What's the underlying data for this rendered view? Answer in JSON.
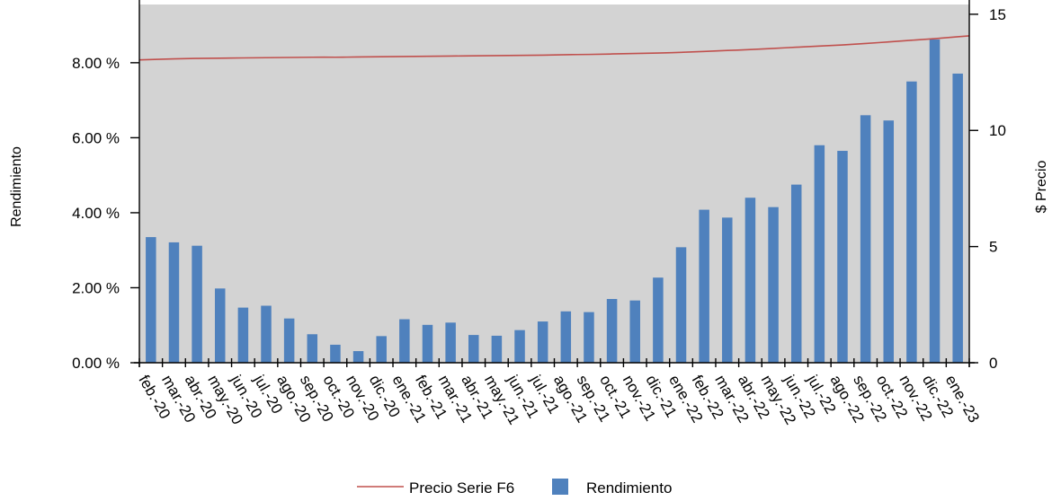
{
  "chart_data": {
    "type": "bar",
    "categories": [
      "feb.-20",
      "mar.-20",
      "abr.-20",
      "may.-20",
      "jun.-20",
      "jul.-20",
      "ago.-20",
      "sep.-20",
      "oct.-20",
      "nov.-20",
      "dic.-20",
      "ene.-21",
      "feb.-21",
      "mar.-21",
      "abr.-21",
      "may.-21",
      "jun.-21",
      "jul.-21",
      "ago.-21",
      "sep.-21",
      "oct.-21",
      "nov.-21",
      "dic.-21",
      "ene.-22",
      "feb.-22",
      "mar.-22",
      "abr.-22",
      "may.-22",
      "jun.-22",
      "jul.-22",
      "ago.-22",
      "sep.-22",
      "oct.-22",
      "nov.-22",
      "dic.-22",
      "ene.-23"
    ],
    "series": [
      {
        "name": "Rendimiento",
        "kind": "bar",
        "axis": "left",
        "color": "#4f81bd",
        "values": [
          3.35,
          3.21,
          3.12,
          1.98,
          1.47,
          1.52,
          1.18,
          0.76,
          0.48,
          0.31,
          0.71,
          1.16,
          1.01,
          1.07,
          0.74,
          0.72,
          0.87,
          1.1,
          1.37,
          1.35,
          1.7,
          1.66,
          2.27,
          3.08,
          4.08,
          3.87,
          4.4,
          4.15,
          4.75,
          5.8,
          5.65,
          6.6,
          6.46,
          7.5,
          8.62,
          7.71
        ]
      },
      {
        "name": "Precio Serie F6",
        "kind": "line",
        "axis": "right",
        "color": "#c0504d",
        "values": [
          13.05,
          13.08,
          13.1,
          13.11,
          13.12,
          13.13,
          13.14,
          13.15,
          13.15,
          13.16,
          13.17,
          13.18,
          13.19,
          13.2,
          13.21,
          13.22,
          13.23,
          13.24,
          13.26,
          13.27,
          13.29,
          13.31,
          13.33,
          13.36,
          13.4,
          13.44,
          13.48,
          13.53,
          13.58,
          13.63,
          13.68,
          13.74,
          13.81,
          13.88,
          13.95,
          14.03
        ]
      }
    ],
    "y_left": {
      "title": "Rendimiento",
      "ticks": [
        "0.00 %",
        "2.00 %",
        "4.00 %",
        "6.00 %",
        "8.00 %"
      ],
      "tick_values": [
        0,
        2,
        4,
        6,
        8
      ],
      "range": [
        0,
        9.553
      ]
    },
    "y_right": {
      "title": "$ Precio",
      "ticks": [
        "0",
        "5",
        "10",
        "15"
      ],
      "tick_values": [
        0,
        5,
        10,
        15
      ],
      "range": [
        0,
        15.42
      ]
    },
    "plot_background": "#d3d3d3",
    "grid": false,
    "legend": {
      "position": "bottom-center",
      "entries": [
        "Precio Serie F6",
        "Rendimiento"
      ]
    }
  }
}
